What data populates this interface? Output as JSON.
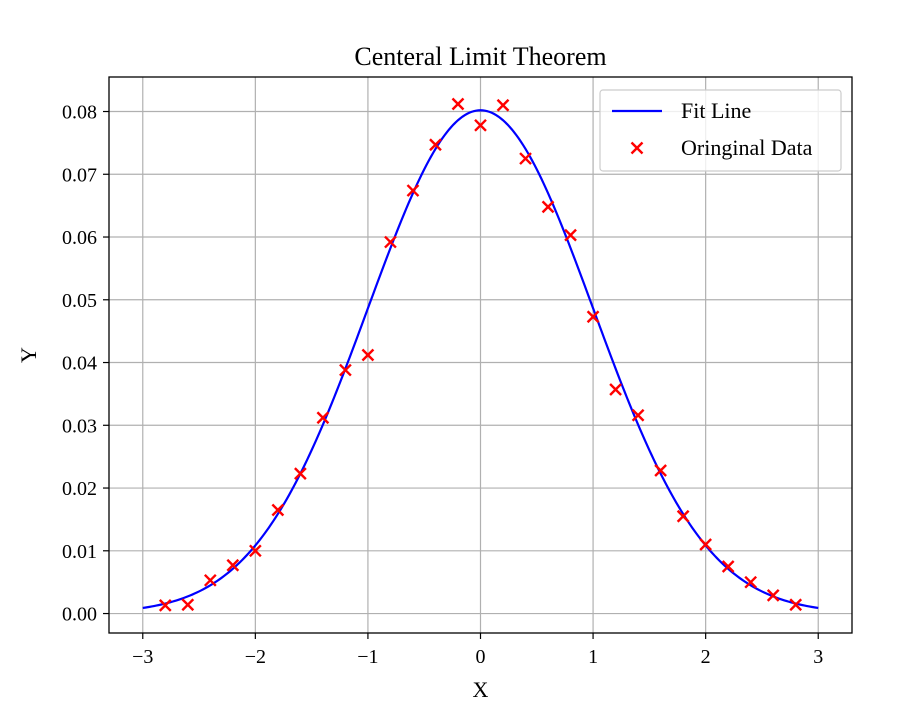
{
  "chart_data": {
    "type": "scatter",
    "title": "Centeral Limit Theorem",
    "xlabel": "X",
    "ylabel": "Y",
    "xlim": [
      -3.3,
      3.3
    ],
    "ylim": [
      -0.0031,
      0.0855
    ],
    "xticks": [
      -3,
      -2,
      -1,
      0,
      1,
      2,
      3
    ],
    "xtick_labels": [
      "−3",
      "−2",
      "−1",
      "0",
      "1",
      "2",
      "3"
    ],
    "yticks": [
      0.0,
      0.01,
      0.02,
      0.03,
      0.04,
      0.05,
      0.06,
      0.07,
      0.08
    ],
    "ytick_labels": [
      "0.00",
      "0.01",
      "0.02",
      "0.03",
      "0.04",
      "0.05",
      "0.06",
      "0.07",
      "0.08"
    ],
    "grid": true,
    "legend_position": "top-right",
    "series": [
      {
        "name": "Fit Line",
        "kind": "line",
        "color": "#0000ff",
        "curve": "normal",
        "mean": 0,
        "sigma": 1,
        "amplitude": 0.0802,
        "x_range": [
          -3,
          3
        ]
      },
      {
        "name": "Oringinal Data",
        "kind": "scatter",
        "marker": "x",
        "color": "#ff0000",
        "points": [
          [
            -2.8,
            0.0013
          ],
          [
            -2.6,
            0.0014
          ],
          [
            -2.4,
            0.0053
          ],
          [
            -2.2,
            0.0077
          ],
          [
            -2.0,
            0.01
          ],
          [
            -1.8,
            0.0165
          ],
          [
            -1.6,
            0.0223
          ],
          [
            -1.4,
            0.0312
          ],
          [
            -1.2,
            0.0388
          ],
          [
            -1.0,
            0.0412
          ],
          [
            -0.8,
            0.0592
          ],
          [
            -0.6,
            0.0674
          ],
          [
            -0.4,
            0.0747
          ],
          [
            -0.2,
            0.0812
          ],
          [
            0.0,
            0.0778
          ],
          [
            0.2,
            0.081
          ],
          [
            0.4,
            0.0725
          ],
          [
            0.6,
            0.0648
          ],
          [
            0.8,
            0.0603
          ],
          [
            1.0,
            0.0473
          ],
          [
            1.2,
            0.0357
          ],
          [
            1.4,
            0.0316
          ],
          [
            1.6,
            0.0228
          ],
          [
            1.8,
            0.0155
          ],
          [
            2.0,
            0.011
          ],
          [
            2.2,
            0.0075
          ],
          [
            2.4,
            0.005
          ],
          [
            2.6,
            0.0029
          ],
          [
            2.8,
            0.0014
          ]
        ]
      }
    ]
  }
}
